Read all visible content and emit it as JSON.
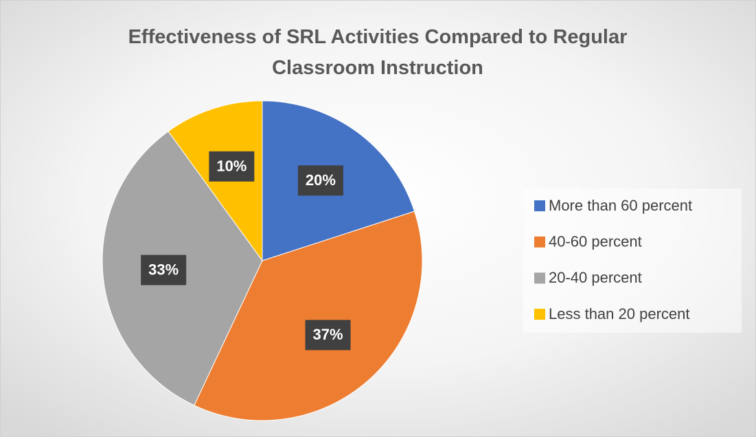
{
  "chart_data": {
    "type": "pie",
    "title": "Effectiveness of SRL Activities Compared to Regular Classroom Instruction",
    "categories": [
      "More than 60 percent",
      "40-60 percent",
      "20-40 percent",
      "Less than 20 percent"
    ],
    "values": [
      20,
      37,
      33,
      10
    ],
    "value_labels": [
      "20%",
      "37%",
      "33%",
      "10%"
    ],
    "colors": [
      "#4472c4",
      "#ed7d31",
      "#a5a5a5",
      "#ffc000"
    ],
    "legend": "right"
  }
}
